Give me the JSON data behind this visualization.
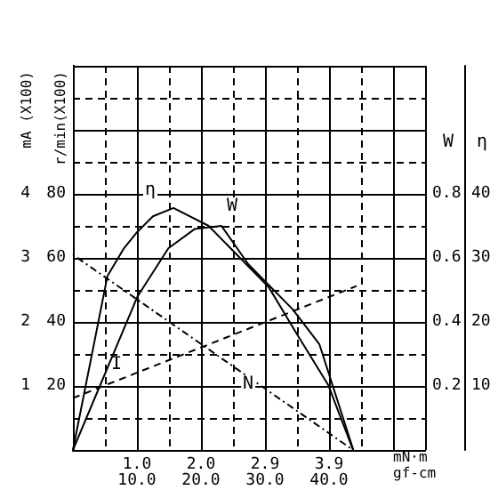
{
  "chart_data": [
    {
      "type": "line",
      "xlabel": "gf-cm",
      "x2label": "mN·m",
      "ylabel": "r/min(X100)",
      "y2label": "mA (X100)",
      "xlim": [
        0,
        55
      ],
      "xticks": [
        {
          "value": 10,
          "label": "10.0"
        },
        {
          "value": 20,
          "label": "20.0"
        },
        {
          "value": 30,
          "label": "30.0"
        },
        {
          "value": 40,
          "label": "40.0"
        },
        {
          "value": 50,
          "label": null
        }
      ],
      "x2lim": [
        0,
        5.39
      ],
      "x2ticks": [
        {
          "value": 0.98,
          "label": "1.0"
        },
        {
          "value": 1.96,
          "label": "2.0"
        },
        {
          "value": 2.94,
          "label": "2.9"
        },
        {
          "value": 3.92,
          "label": "3.9"
        }
      ],
      "ylim": [
        0,
        120
      ],
      "yticks": [
        20,
        40,
        60,
        80,
        {
          "value": 100,
          "label": null
        },
        {
          "value": 120,
          "label": null
        }
      ],
      "y2lim": [
        0,
        6
      ],
      "y2ticks": [
        1,
        2,
        3,
        4
      ],
      "grid": true,
      "legend": false,
      "marker": "none",
      "series": [
        {
          "name": "N",
          "color": "#000000",
          "line_style": "dotted",
          "x": [
            0,
            24.6,
            43.75
          ],
          "values": [
            61,
            26.7,
            0
          ]
        },
        {
          "name": "I",
          "color": "#000000",
          "axis": "y2",
          "line_style": "dashed",
          "x": [
            0,
            6.8,
            44.3
          ],
          "values": [
            0.81,
            1.08,
            2.56
          ]
        }
      ]
    },
    {
      "type": "line",
      "ylabel": "W",
      "y2label": "η",
      "xlim": [
        0,
        55
      ],
      "ylim": [
        0,
        1.2
      ],
      "yticks": [
        0.2,
        0.4,
        0.6,
        0.8
      ],
      "y2lim": [
        0,
        60
      ],
      "y2ticks": [
        10,
        20,
        30,
        40
      ],
      "tick_labels": "y",
      "legend": false,
      "marker": "none",
      "series": [
        {
          "name": "W",
          "color": "#000000",
          "line_style": "solid",
          "x": [
            0,
            10.1,
            14.9,
            19,
            23.2,
            27.4,
            34.3,
            38.5,
            43.8
          ],
          "values": [
            0,
            0.48,
            0.63,
            0.69,
            0.7,
            0.58,
            0.44,
            0.33,
            0
          ]
        },
        {
          "name": "η",
          "color": "#000000",
          "axis": "y2",
          "line_style": "solid",
          "x": [
            0,
            5.4,
            7.9,
            10,
            12.5,
            15.7,
            21.2,
            30.6,
            34.8,
            39.9,
            43.75
          ],
          "values": [
            0,
            27.2,
            31.4,
            34,
            36.5,
            37.8,
            35,
            25.4,
            18.4,
            10.1,
            0
          ]
        }
      ]
    }
  ]
}
